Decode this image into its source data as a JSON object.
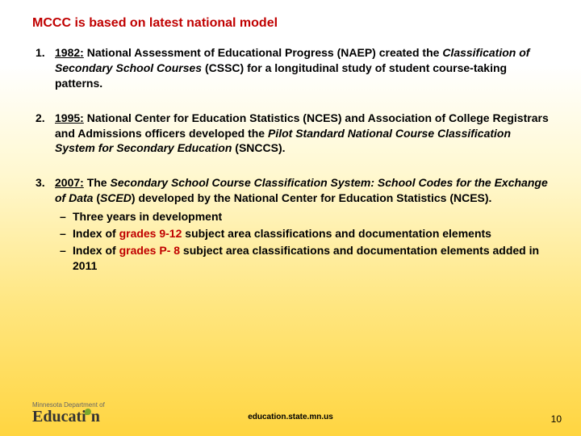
{
  "title": "MCCC is based on latest national model",
  "items": [
    {
      "year": "1982:",
      "body_html": "National Assessment of Educational Progress (NAEP) created the <span class='italic'>Classification of Secondary School Courses</span> (CSSC) for a longitudinal study of student course-taking patterns."
    },
    {
      "year": "1995:",
      "body_html": "National Center for Education Statistics (NCES) and Association of College Registrars and Admissions officers developed the <span class='italic'>Pilot Standard National Course Classification System for Secondary Education</span> (SNCCS)."
    },
    {
      "year": "2007:",
      "body_html": "The <span class='italic'>Secondary School Course Classification System: School Codes for the Exchange of Data</span> (<span class='italic'>SCED</span>) developed by the National Center for Education Statistics (NCES).",
      "subs": [
        "Three years in development",
        "Index of <span class='red'>grades 9-12</span> subject area classifications and documentation elements",
        "Index of <span class='red'>grades P- 8</span> subject area classifications and documentation elements added in 2011"
      ]
    }
  ],
  "footer": {
    "logo_small": "Minnesota Department of",
    "logo_big": "Educati",
    "logo_big_after": "n",
    "url": "education.state.mn.us",
    "page": "10"
  },
  "colors": {
    "title": "#c00000",
    "highlight": "#c00000",
    "text": "#000000"
  }
}
